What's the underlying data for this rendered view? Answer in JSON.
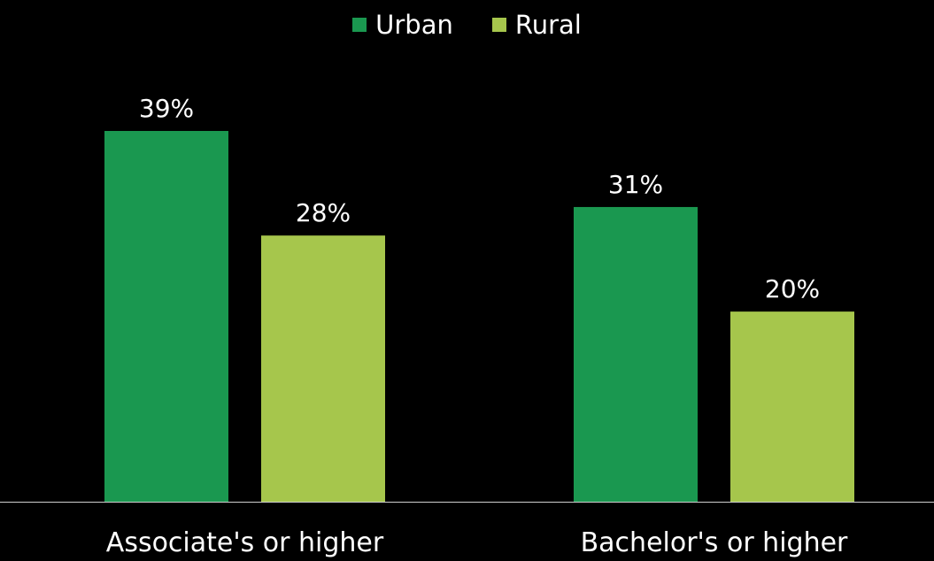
{
  "legend": {
    "items": [
      {
        "label": "Urban",
        "color": "#1a9850"
      },
      {
        "label": "Rural",
        "color": "#a6c64c"
      }
    ]
  },
  "chart_data": {
    "type": "bar",
    "categories": [
      "Associate's or higher",
      "Bachelor's or higher"
    ],
    "series": [
      {
        "name": "Urban",
        "values": [
          39,
          31
        ],
        "labels": [
          "39%",
          "31%"
        ],
        "color": "#1a9850"
      },
      {
        "name": "Rural",
        "values": [
          28,
          20
        ],
        "labels": [
          "28%",
          "20%"
        ],
        "color": "#a6c64c"
      }
    ],
    "title": "",
    "xlabel": "",
    "ylabel": "",
    "ylim": [
      0,
      39
    ],
    "grid": false,
    "legend_position": "top-center"
  }
}
